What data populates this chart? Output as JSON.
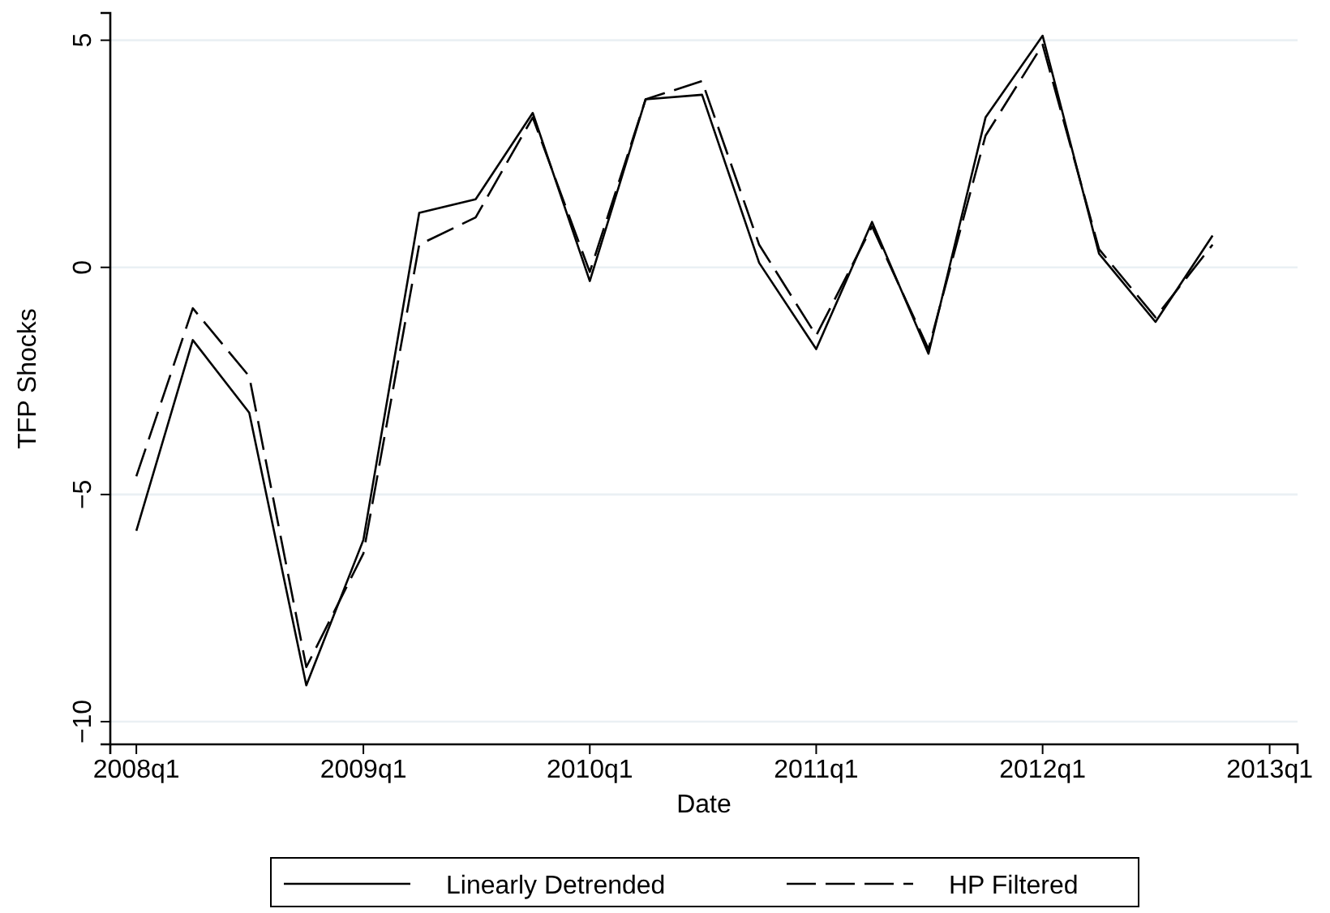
{
  "chart_data": {
    "type": "line",
    "xlabel": "Date",
    "ylabel": "TFP Shocks",
    "x": [
      "2008-01",
      "2008-04",
      "2008-07",
      "2008-10",
      "2009-01",
      "2009-04",
      "2009-07",
      "2009-10",
      "2010-01",
      "2010-04",
      "2010-07",
      "2010-10",
      "2011-01",
      "2011-04",
      "2011-07",
      "2011-10",
      "2012-01",
      "2012-04",
      "2012-07",
      "2012-10"
    ],
    "series": [
      {
        "name": "Linearly Detrended",
        "color": "#000000",
        "line_style": "solid",
        "values": [
          -5.8,
          -1.6,
          -3.2,
          -9.2,
          -6.0,
          1.2,
          1.5,
          3.4,
          -0.3,
          3.7,
          3.8,
          0.1,
          -1.8,
          1.0,
          -1.9,
          3.3,
          5.1,
          0.3,
          -1.2,
          0.7
        ]
      },
      {
        "name": "HP Filtered",
        "color": "#000000",
        "line_style": "dashed",
        "values": [
          -4.6,
          -0.9,
          -2.4,
          -8.8,
          -6.3,
          0.5,
          1.1,
          3.3,
          -0.1,
          3.7,
          4.1,
          0.5,
          -1.5,
          0.9,
          -1.8,
          2.9,
          4.9,
          0.4,
          -1.1,
          0.5
        ]
      }
    ],
    "xlim": [
      "2007-11-20",
      "2013-02-15"
    ],
    "ylim": [
      -10.5,
      5.6
    ],
    "xticks": [
      {
        "value": "2008-01",
        "label": "2008q1"
      },
      {
        "value": "2009-01",
        "label": "2009q1"
      },
      {
        "value": "2010-01",
        "label": "2010q1"
      },
      {
        "value": "2011-01",
        "label": "2011q1"
      },
      {
        "value": "2012-01",
        "label": "2012q1"
      },
      {
        "value": "2013-01",
        "label": "2013q1"
      }
    ],
    "yticks": [
      -10,
      -5,
      0,
      5
    ],
    "grid": "y",
    "legend": "bottom"
  }
}
